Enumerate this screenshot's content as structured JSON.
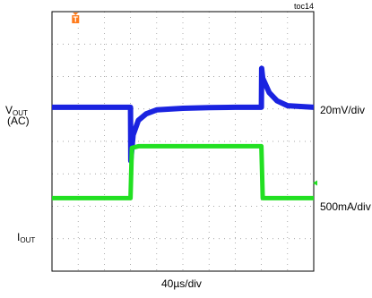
{
  "figure_id": "toc14",
  "colors": {
    "vout_trace": "#1a23e0",
    "iout_trace": "#22e022",
    "trigger_marker": "#ff7a1a",
    "grid": "#8c8c8c",
    "frame": "#000000"
  },
  "labels": {
    "vout_main": "V",
    "vout_sub": "OUT",
    "vout_ac": "(AC)",
    "iout_main": "I",
    "iout_sub": "OUT",
    "vout_scale": "20mV/div",
    "iout_scale": "500mA/div",
    "time_scale": "40µs/div"
  },
  "chart_data": {
    "type": "line",
    "title": "",
    "xlabel": "40µs/div",
    "divisions": {
      "x": 10,
      "y": 8
    },
    "xlim_div": [
      0,
      10
    ],
    "ylim_div": [
      -4,
      4
    ],
    "grid": true,
    "trigger_marker_div": 0.9,
    "series": [
      {
        "name": "VOUT (AC)",
        "scale": "20mV/div",
        "unit_note": "y in divisions from screen center",
        "x": [
          0,
          3.0,
          3.01,
          3.1,
          3.3,
          3.6,
          4.0,
          5.0,
          6.0,
          7.0,
          8.0,
          8.01,
          8.05,
          8.3,
          8.6,
          9.0,
          10.0
        ],
        "y": [
          1.05,
          1.05,
          -0.6,
          0.2,
          0.65,
          0.85,
          0.97,
          1.02,
          1.04,
          1.05,
          1.05,
          2.25,
          1.95,
          1.5,
          1.25,
          1.1,
          1.05
        ]
      },
      {
        "name": "IOUT",
        "scale": "500mA/div",
        "unit_note": "y in divisions from screen center",
        "x": [
          0,
          3.0,
          3.05,
          3.3,
          8.0,
          8.05,
          10.0
        ],
        "y": [
          -1.75,
          -1.75,
          -0.2,
          -0.15,
          -0.15,
          -1.75,
          -1.75
        ]
      }
    ]
  }
}
